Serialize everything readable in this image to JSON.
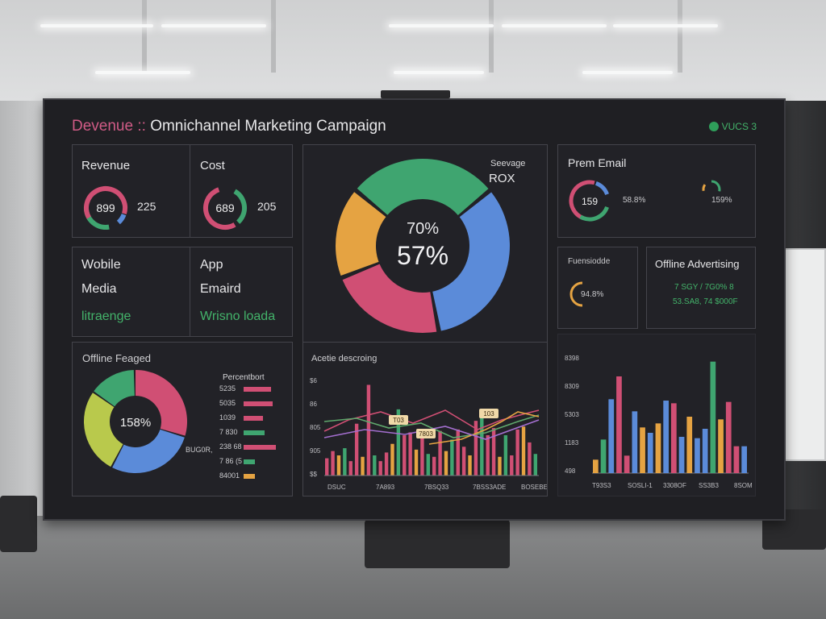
{
  "header": {
    "brand": "Devenue",
    "sep": "::",
    "title": "Omnichannel Marketing Campaign",
    "logo_text": "VUCS 3"
  },
  "kpis": {
    "revenue": {
      "label": "Revenue",
      "center": "899",
      "value": "225"
    },
    "cost": {
      "label": "Cost",
      "center": "689",
      "value": "205"
    },
    "mobile": {
      "line1": "Wobile",
      "line2": "Media",
      "line3": "litraenge"
    },
    "app": {
      "line1": "App",
      "line2": "Emaird",
      "line3": "Wrisno loada"
    }
  },
  "center_donut": {
    "label1": "Seevage",
    "label2": "ROX",
    "center_top": "70%",
    "center_main": "57%"
  },
  "prem_email": {
    "title": "Prem Email",
    "center": "159",
    "value1": "58.8%",
    "value2": "159%"
  },
  "fuensiodde": {
    "title": "Fuensiodde",
    "value": "94.8%"
  },
  "offline_ads": {
    "title": "Offline Advertising",
    "line1": "7 SGY / 7G0% 8",
    "line2": "53.SA8, 74 $000F"
  },
  "offline_engaged": {
    "title": "Offline Feaged",
    "center": "158%",
    "legend_title": "Percentbort",
    "side_label": "BUG0R,",
    "rows": [
      "5235",
      "5035",
      "1039",
      "7 830",
      "238 68",
      "7 86 (5",
      "84001"
    ]
  },
  "line_panel": {
    "title": "Acetie descroing",
    "y_ticks": [
      "$6",
      "86",
      "805",
      "905",
      "$$"
    ],
    "x_ticks": [
      "DSUC",
      "7A893",
      "7BSQ33",
      "7BSS3ADE",
      "BOSEBE(SJ"
    ],
    "tags": [
      "103",
      "7803",
      "T03"
    ]
  },
  "bar_panel": {
    "y_ticks": [
      "8398",
      "8309",
      "5303",
      "1183",
      "498"
    ],
    "x_ticks": [
      "T93S3",
      "SOSLI-1",
      "3308OF",
      "SS3B3",
      "8SOM"
    ]
  },
  "chart_data": [
    {
      "type": "pie",
      "title": "",
      "labels": [
        "",
        "",
        "",
        ""
      ],
      "values": [
        33,
        22,
        17,
        28
      ],
      "colors": [
        "#5b8bd9",
        "#d04f74",
        "#e5a342",
        "#3fa570"
      ]
    },
    {
      "type": "bar",
      "categories": [
        "1",
        "2",
        "3",
        "4",
        "5",
        "6",
        "7",
        "8",
        "9",
        "10",
        "11",
        "12",
        "13",
        "14",
        "15",
        "16",
        "17",
        "18",
        "19",
        "20",
        "21",
        "22",
        "23",
        "24",
        "25",
        "26",
        "27",
        "28",
        "29",
        "30",
        "31",
        "32",
        "33",
        "34",
        "35",
        "36"
      ],
      "values": [
        1.2,
        1.7,
        1.4,
        1.9,
        1.0,
        3.6,
        1.3,
        6.3,
        1.4,
        1.0,
        1.6,
        2.2,
        4.6,
        2.8,
        3.0,
        1.8,
        2.7,
        1.5,
        1.3,
        3.1,
        1.7,
        2.5,
        3.2,
        2.0,
        1.4,
        3.8,
        4.4,
        2.8,
        3.3,
        1.3,
        2.8,
        1.4,
        3.2,
        3.4,
        2.3,
        1.5
      ],
      "ylim": [
        0,
        7
      ]
    },
    {
      "type": "bar",
      "categories": [
        "1",
        "2",
        "3",
        "4",
        "5",
        "6",
        "7",
        "8",
        "9",
        "10",
        "11",
        "12",
        "13",
        "14",
        "15",
        "16",
        "17",
        "18",
        "19",
        "20"
      ],
      "values": [
        1.0,
        2.5,
        5.5,
        7.2,
        1.3,
        4.6,
        3.4,
        3.0,
        3.7,
        5.4,
        5.2,
        2.7,
        4.2,
        2.6,
        3.3,
        8.3,
        4.0,
        5.3,
        2.0,
        2.0
      ],
      "ylim": [
        0,
        9
      ]
    }
  ]
}
